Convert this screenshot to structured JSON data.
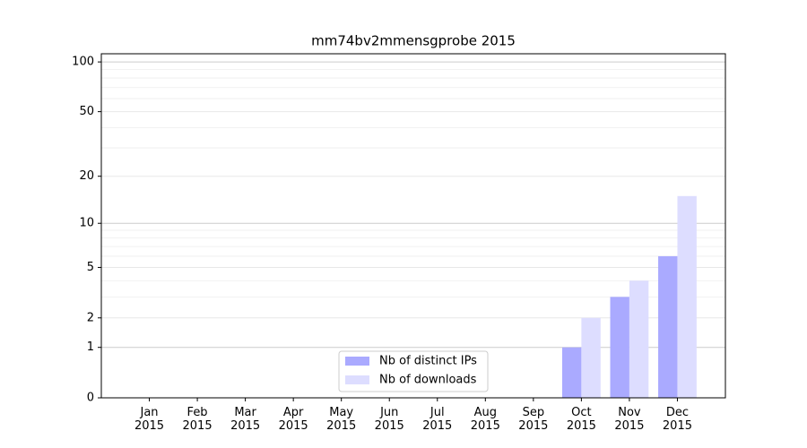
{
  "chart_data": {
    "type": "bar",
    "title": "mm74bv2mmensgprobe 2015",
    "categories": [
      "Jan\n2015",
      "Feb\n2015",
      "Mar\n2015",
      "Apr\n2015",
      "May\n2015",
      "Jun\n2015",
      "Jul\n2015",
      "Aug\n2015",
      "Sep\n2015",
      "Oct\n2015",
      "Nov\n2015",
      "Dec\n2015"
    ],
    "series": [
      {
        "name": "Nb of distinct IPs",
        "color": "#aaaaff",
        "values": [
          0,
          0,
          0,
          0,
          0,
          0,
          0,
          0,
          0,
          1,
          3,
          6
        ]
      },
      {
        "name": "Nb of downloads",
        "color": "#ddddff",
        "values": [
          0,
          0,
          0,
          0,
          0,
          0,
          0,
          0,
          0,
          2,
          4,
          15
        ]
      }
    ],
    "yscale": "log1p",
    "ylim": [
      0,
      112
    ],
    "yticks": [
      0,
      1,
      2,
      5,
      10,
      20,
      50,
      100
    ],
    "minor_yticks": [
      3,
      4,
      6,
      7,
      8,
      9,
      30,
      40,
      60,
      70,
      80,
      90
    ],
    "grid": true,
    "legend": "lower center"
  }
}
